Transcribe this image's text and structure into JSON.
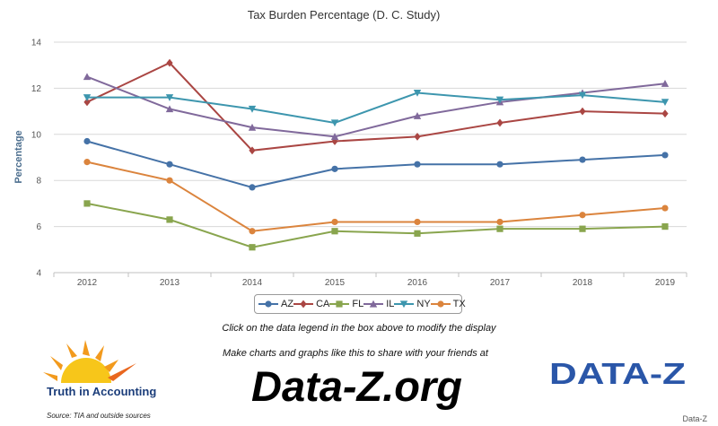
{
  "chart_data": {
    "type": "line",
    "title": "Tax Burden Percentage (D. C. Study)",
    "ylabel": "Percentage",
    "xlabel": "",
    "ylim": [
      4,
      14
    ],
    "yticks": [
      4,
      6,
      8,
      10,
      12,
      14
    ],
    "grid": true,
    "legend_position": "bottom-center",
    "x": [
      "2012",
      "2013",
      "2014",
      "2015",
      "2016",
      "2017",
      "2018",
      "2019"
    ],
    "series": [
      {
        "name": "AZ",
        "color": "#4572a7",
        "marker": "circle",
        "values": [
          9.7,
          8.7,
          7.7,
          8.5,
          8.7,
          8.7,
          8.9,
          9.1
        ]
      },
      {
        "name": "CA",
        "color": "#aa4643",
        "marker": "diamond",
        "values": [
          11.4,
          13.1,
          9.3,
          9.7,
          9.9,
          10.5,
          11.0,
          10.9
        ]
      },
      {
        "name": "FL",
        "color": "#89a54e",
        "marker": "square",
        "values": [
          7.0,
          6.3,
          5.1,
          5.8,
          5.7,
          5.9,
          5.9,
          6.0
        ]
      },
      {
        "name": "IL",
        "color": "#80699b",
        "marker": "triangle",
        "values": [
          12.5,
          11.1,
          10.3,
          9.9,
          10.8,
          11.4,
          11.8,
          12.2
        ]
      },
      {
        "name": "NY",
        "color": "#3d96ae",
        "marker": "triangle-down",
        "values": [
          11.6,
          11.6,
          11.1,
          10.5,
          11.8,
          11.5,
          11.7,
          11.4
        ]
      },
      {
        "name": "TX",
        "color": "#db843d",
        "marker": "circle",
        "values": [
          8.8,
          8.0,
          5.8,
          6.2,
          6.2,
          6.2,
          6.5,
          6.8
        ]
      }
    ]
  },
  "footer": {
    "hint": "Click on the data legend in the box above to modify the display",
    "tagline": "Make charts and graphs like this to share with your friends at",
    "site": "Data-Z.org",
    "tia_name": "Truth in Accounting",
    "source": "Source: TIA and outside sources",
    "dz_logo_text": "DATA-Z",
    "credit": "Data-Z"
  }
}
